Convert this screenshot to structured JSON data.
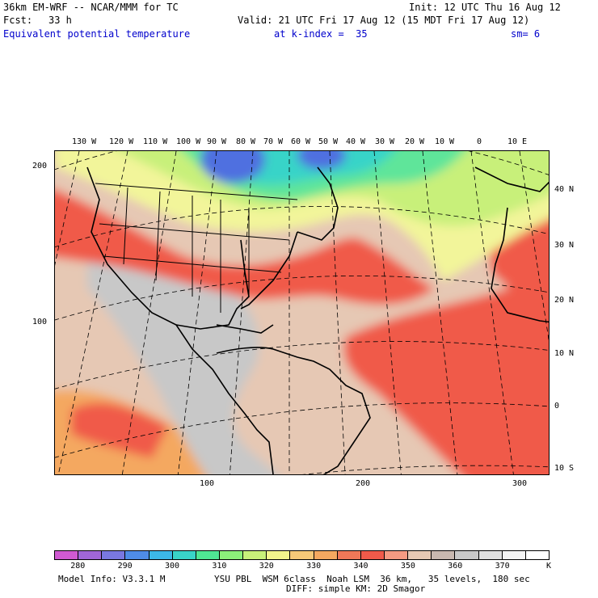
{
  "header": {
    "model_title": "36km EM-WRF -- NCAR/MMM for TC",
    "init": "Init: 12 UTC Thu 16 Aug 12",
    "fcst_label": "Fcst:",
    "fcst_value": "33 h",
    "valid": "Valid: 21 UTC Fri 17 Aug 12 (15 MDT Fri 17 Aug 12)",
    "field_name": "Equivalent potential temperature",
    "level": "at k-index =  35",
    "smoothing": "sm= 6"
  },
  "map": {
    "top_longitude_labels": [
      "130 W",
      "120 W",
      "110 W",
      "100 W",
      "90 W",
      "80 W",
      "70 W",
      "60 W",
      "50 W",
      "40 W",
      "30 W",
      "20 W",
      "10 W",
      "0",
      "10 E"
    ],
    "right_latitude_labels": [
      "40 N",
      "30 N",
      "20 N",
      "10 N",
      "0",
      "10 S"
    ],
    "left_grid_labels": [
      "200",
      "100"
    ],
    "bottom_grid_labels": [
      "100",
      "200",
      "300"
    ],
    "colors": {
      "cold_blue": "#4f6fe0",
      "cyan": "#39d4c8",
      "green": "#5fe59a",
      "yellow_green": "#c8f07a",
      "yellow": "#f2f59a",
      "orange": "#f4a860",
      "red": "#f05a4a",
      "salmon": "#f59a82",
      "tan": "#e6c8b4",
      "gray": "#c8c8c8"
    }
  },
  "colorbar": {
    "colors": [
      "#d05ad2",
      "#a066d8",
      "#7a78e0",
      "#4f8ce6",
      "#3cb8e6",
      "#39d4c8",
      "#4fe694",
      "#8cf07a",
      "#c8f07a",
      "#f2f58c",
      "#f6c878",
      "#f4a860",
      "#f07858",
      "#f05a4a",
      "#f59a82",
      "#e6c8b4",
      "#c8b8b0",
      "#c8c8c8",
      "#e0e0e0",
      "#f4f4f4",
      "#ffffff"
    ],
    "tick_labels": [
      "280",
      "290",
      "300",
      "310",
      "320",
      "330",
      "340",
      "350",
      "360",
      "370"
    ],
    "unit": "K"
  },
  "footer": {
    "model_info": "Model Info: V3.3.1 M",
    "physics_line1": "YSU PBL  WSM 6class  Noah LSM  36 km,   35 levels,  180 sec",
    "physics_line2": "DIFF: simple KM: 2D Smagor"
  }
}
